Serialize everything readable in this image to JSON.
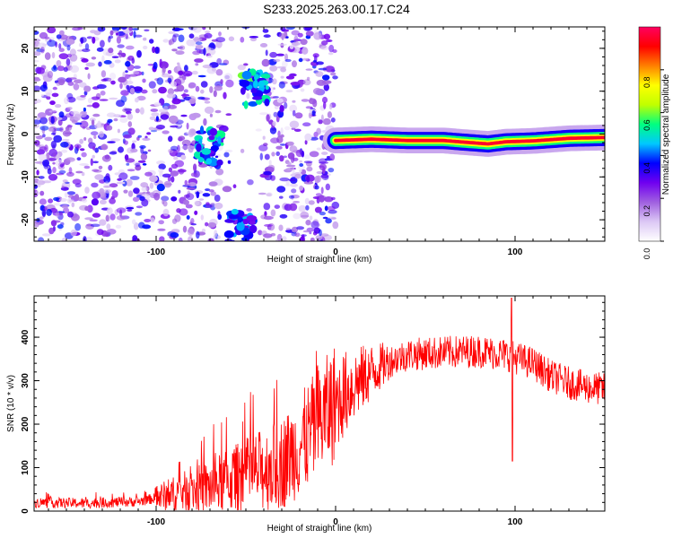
{
  "chart_data": [
    {
      "type": "heatmap",
      "title": "S233.2025.263.00.17.C24",
      "xlabel": "Height of straight line (km)",
      "ylabel": "Frequency (Hz)",
      "xlim": [
        -168,
        150
      ],
      "ylim": [
        -25,
        25
      ],
      "xticks": [
        -100,
        0,
        100
      ],
      "yticks": [
        -20,
        -10,
        0,
        10,
        20
      ],
      "colorbar": {
        "label": "Normalized spectral amplitude",
        "range": [
          0,
          1
        ],
        "ticks": [
          "0.0",
          "0.2",
          "0.4",
          "0.6",
          "0.8"
        ],
        "colormap": [
          "#ffffff",
          "#dcc8f5",
          "#a060e0",
          "#7000f0",
          "#0000ff",
          "#00c8ff",
          "#00ff80",
          "#c0ff00",
          "#ffff00",
          "#ff8000",
          "#ff0000",
          "#ff0060"
        ]
      },
      "carrier_line": {
        "x_start": 0,
        "x_end": 150,
        "frequency": [
          [
            0,
            -1.5
          ],
          [
            20,
            -1.2
          ],
          [
            40,
            -1.5
          ],
          [
            60,
            -1.5
          ],
          [
            75,
            -2.0
          ],
          [
            85,
            -2.3
          ],
          [
            95,
            -1.8
          ],
          [
            110,
            -1.6
          ],
          [
            130,
            -1.0
          ],
          [
            150,
            -0.8
          ]
        ],
        "peak_amplitude": 0.95
      },
      "noise_region": {
        "x_start": -168,
        "x_end": 0,
        "amplitude": 0.3
      },
      "clusters": [
        {
          "x": -70,
          "y": -3,
          "amplitude": 0.45
        },
        {
          "x": -45,
          "y": 10.5,
          "amplitude": 0.5
        },
        {
          "x": -53,
          "y": -22,
          "amplitude": 0.4
        }
      ]
    },
    {
      "type": "line",
      "title": "",
      "xlabel": "Height of straight line (km)",
      "ylabel": "SNR (10 * v/v)",
      "xlim": [
        -168,
        150
      ],
      "ylim": [
        0,
        495
      ],
      "xticks": [
        -100,
        0,
        100
      ],
      "yticks": [
        0,
        100,
        200,
        300,
        400
      ],
      "color": "#ff0000",
      "profile": [
        [
          -168,
          20
        ],
        [
          -140,
          18
        ],
        [
          -110,
          22
        ],
        [
          -100,
          30
        ],
        [
          -90,
          40
        ],
        [
          -80,
          48
        ],
        [
          -70,
          55
        ],
        [
          -60,
          70
        ],
        [
          -50,
          85
        ],
        [
          -40,
          95
        ],
        [
          -30,
          110
        ],
        [
          -20,
          150
        ],
        [
          -10,
          200
        ],
        [
          0,
          250
        ],
        [
          10,
          290
        ],
        [
          20,
          320
        ],
        [
          30,
          345
        ],
        [
          40,
          360
        ],
        [
          60,
          365
        ],
        [
          80,
          368
        ],
        [
          95,
          360
        ],
        [
          110,
          340
        ],
        [
          120,
          310
        ],
        [
          130,
          295
        ],
        [
          140,
          285
        ],
        [
          150,
          280
        ]
      ],
      "spike": {
        "x": 98,
        "values": [
          490,
          115
        ]
      }
    }
  ]
}
